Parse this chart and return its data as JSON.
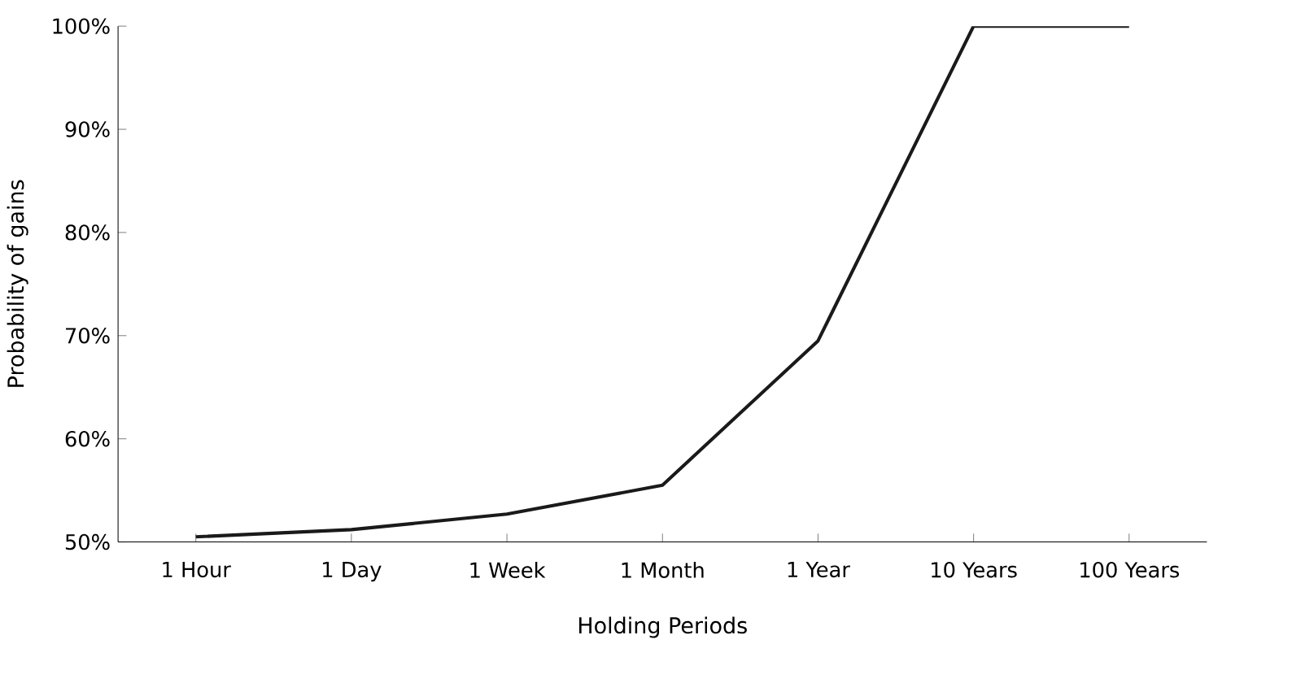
{
  "chart_data": {
    "type": "line",
    "xlabel": "Holding Periods",
    "ylabel": "Probability of gains",
    "categories": [
      "1 Hour",
      "1 Day",
      "1 Week",
      "1 Month",
      "1 Year",
      "10 Years",
      "100 Years"
    ],
    "values": [
      50.5,
      51.2,
      52.7,
      55.5,
      69.5,
      100,
      100
    ],
    "color": "#1a1a1a",
    "ylim": [
      50,
      100
    ],
    "yticks": [
      {
        "value": 50,
        "label": "50%"
      },
      {
        "value": 60,
        "label": "60%"
      },
      {
        "value": 70,
        "label": "70%"
      },
      {
        "value": 80,
        "label": "80%"
      },
      {
        "value": 90,
        "label": "90%"
      },
      {
        "value": 100,
        "label": "100%"
      }
    ],
    "grid": false,
    "marker": "none",
    "line_style": "solid"
  }
}
